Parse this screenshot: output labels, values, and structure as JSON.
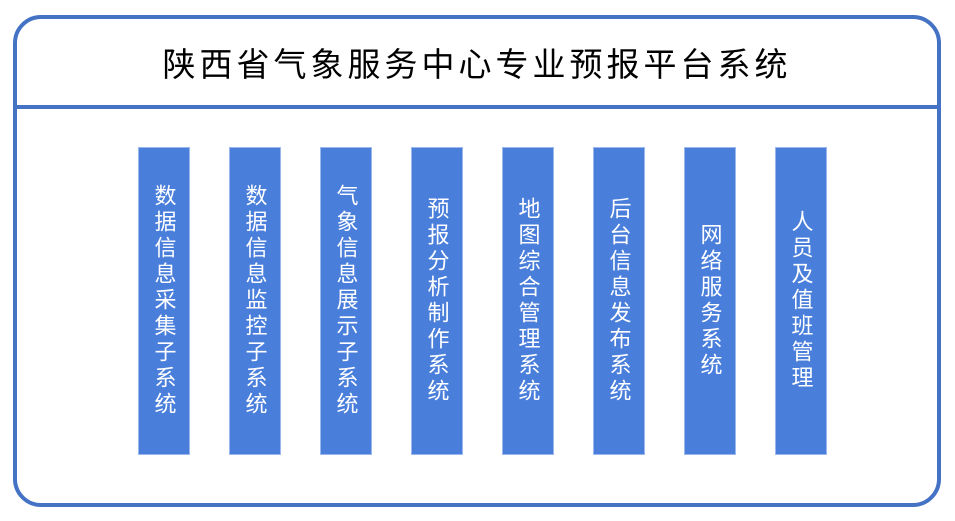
{
  "title": "陕西省气象服务中心专业预报平台系统",
  "colors": {
    "frame_border": "#4472C4",
    "bar_fill": "#4A7EDB",
    "bar_edge": "#9AB8EC",
    "bar_text": "#FFFFFF",
    "title_text": "#000000"
  },
  "subsystems": [
    {
      "label": "数据信息采集子系统"
    },
    {
      "label": "数据信息监控子系统"
    },
    {
      "label": "气象信息展示子系统"
    },
    {
      "label": "预报分析制作系统"
    },
    {
      "label": "地图综合管理系统"
    },
    {
      "label": "后台信息发布系统"
    },
    {
      "label": "网络服务系统"
    },
    {
      "label": "人员及值班管理"
    }
  ]
}
